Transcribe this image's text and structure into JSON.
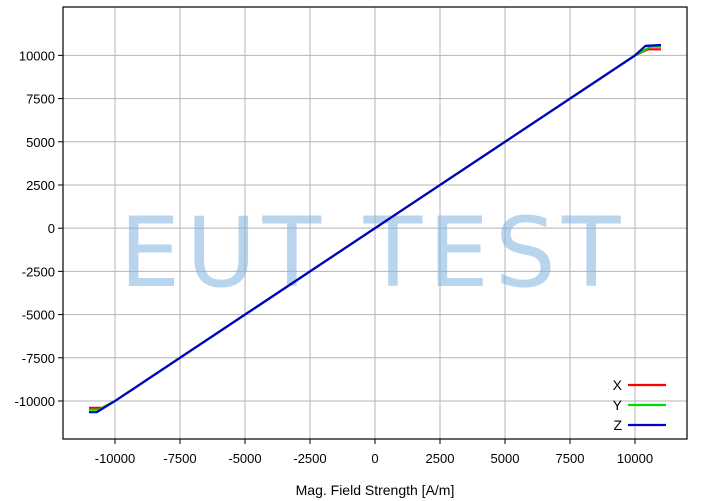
{
  "watermark": "EUT TEST",
  "chart_data": {
    "type": "line",
    "title": "",
    "xlabel": "Mag. Field Strength [A/m]",
    "ylabel": "",
    "xlim": [
      -12000,
      12000
    ],
    "ylim": [
      -12200,
      12800
    ],
    "grid": true,
    "legend_position": "bottom-right",
    "xticks": [
      -10000,
      -7500,
      -5000,
      -2500,
      0,
      2500,
      5000,
      7500,
      10000
    ],
    "yticks": [
      -10000,
      -7500,
      -5000,
      -2500,
      0,
      2500,
      5000,
      7500,
      10000
    ],
    "series": [
      {
        "name": "X",
        "color": "#ff0000",
        "x": [
          -11000,
          -10500,
          -10000,
          -5000,
          0,
          5000,
          10000,
          10500,
          11000
        ],
        "y": [
          -10400,
          -10400,
          -10000,
          -5000,
          0,
          5000,
          10000,
          10350,
          10350
        ]
      },
      {
        "name": "Y",
        "color": "#00dd00",
        "x": [
          -11000,
          -10600,
          -10000,
          -5000,
          0,
          5000,
          10000,
          10600,
          11000
        ],
        "y": [
          -10500,
          -10500,
          -10000,
          -5000,
          0,
          5000,
          10000,
          10500,
          10500
        ]
      },
      {
        "name": "Z",
        "color": "#0000cc",
        "x": [
          -11000,
          -10700,
          -10000,
          -5000,
          0,
          5000,
          10000,
          10400,
          11000
        ],
        "y": [
          -10650,
          -10650,
          -10000,
          -5000,
          0,
          5000,
          10000,
          10550,
          10600
        ]
      }
    ]
  }
}
